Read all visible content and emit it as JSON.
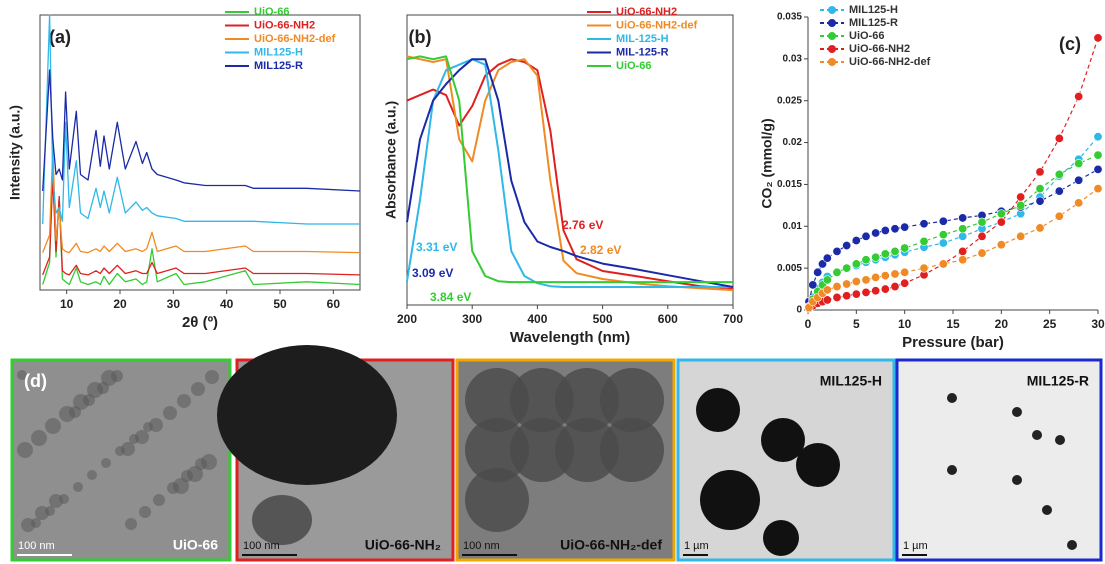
{
  "chart_data": [
    {
      "type": "line",
      "panel_label": "(a)",
      "xlabel": "2θ (º)",
      "ylabel": "Intensity (a.u.)",
      "x": [
        5.5,
        6.8,
        7.4,
        8,
        8.6,
        9.2,
        9.8,
        10.5,
        11.8,
        12.6,
        14,
        15.5,
        16.3,
        17,
        18,
        19.5,
        21,
        23,
        24.2,
        25,
        26,
        27,
        30.5,
        32,
        36,
        43.5,
        45,
        55,
        65
      ],
      "xlim": [
        5,
        65
      ],
      "xticks": [
        10,
        20,
        30,
        40,
        50,
        60
      ],
      "ylim": [
        0,
        100
      ],
      "series": [
        {
          "name": "UiO-66",
          "color": "#33cc33",
          "values": [
            2,
            10,
            45,
            12,
            34,
            4,
            3,
            2,
            8,
            3,
            2,
            3,
            2,
            5,
            2,
            6,
            3,
            4,
            2,
            3,
            15,
            3,
            6,
            2,
            3,
            7,
            2,
            3,
            2
          ]
        },
        {
          "name": "UiO-66-NH2",
          "color": "#e02020",
          "values": [
            5.5,
            12,
            41,
            14,
            34,
            7,
            6,
            5.5,
            9,
            6,
            5.5,
            7,
            6,
            8,
            6,
            9,
            6,
            7,
            6,
            6,
            10,
            6,
            8,
            6,
            6,
            8,
            6,
            6,
            5.5
          ]
        },
        {
          "name": "UiO-66-NH2-def",
          "color": "#f08a24",
          "values": [
            13.6,
            20,
            52,
            18,
            30,
            15,
            14,
            13.6,
            17,
            14,
            13.6,
            15,
            14,
            16,
            14,
            17,
            14,
            15,
            14,
            15,
            21,
            14,
            16,
            14,
            14,
            16,
            14,
            14,
            13.6
          ]
        },
        {
          "name": "MIL125-H",
          "color": "#2fb8e8",
          "values": [
            24,
            100,
            40,
            28,
            30,
            25,
            61,
            30,
            47,
            28,
            26,
            37,
            30,
            36,
            28,
            41,
            28,
            32,
            29,
            30,
            28,
            27,
            26,
            25,
            25,
            25,
            25,
            24,
            24
          ]
        },
        {
          "name": "MIL125-R",
          "color": "#1a2aa8",
          "values": [
            36,
            80,
            55,
            42,
            44,
            40,
            72,
            44,
            65,
            42,
            40,
            58,
            45,
            56,
            44,
            61,
            44,
            54,
            46,
            50,
            44,
            42,
            40,
            39,
            38,
            38,
            37,
            37,
            36
          ]
        }
      ]
    },
    {
      "type": "line",
      "panel_label": "(b)",
      "xlabel": "Wavelength (nm)",
      "ylabel": "Absorbance (a.u.)",
      "x": [
        200,
        220,
        240,
        260,
        280,
        300,
        320,
        340,
        360,
        380,
        400,
        420,
        440,
        460,
        500,
        550,
        600,
        650,
        700
      ],
      "xlim": [
        200,
        700
      ],
      "xticks": [
        200,
        300,
        400,
        500,
        600,
        700
      ],
      "ylim": [
        -5,
        100
      ],
      "series": [
        {
          "name": "UiO-66-NH2",
          "color": "#e02020",
          "values": [
            69,
            71,
            73,
            71,
            60,
            67,
            78,
            82,
            84,
            83,
            80,
            58,
            22,
            11.6,
            7.3,
            5.5,
            3.6,
            1.8,
            1.1
          ]
        },
        {
          "name": "UiO-66-NH2-def",
          "color": "#f08a24",
          "values": [
            85,
            84,
            83,
            84,
            55,
            47,
            69,
            80,
            83,
            84,
            78,
            40,
            11,
            6.5,
            4.4,
            2.9,
            1.8,
            1.1,
            0.4
          ]
        },
        {
          "name": "MIL-125-H",
          "color": "#2fb8e8",
          "values": [
            3.6,
            33,
            69,
            80,
            82,
            84,
            82,
            51,
            14.5,
            5.5,
            2.9,
            1.8,
            1.5,
            1.5,
            1.5,
            1.5,
            1.5,
            1.5,
            1.5
          ]
        },
        {
          "name": "MIL-125-R",
          "color": "#1a2aa8",
          "values": [
            25,
            55,
            69,
            75,
            80,
            84,
            84,
            69,
            40,
            25,
            18,
            16,
            14.5,
            12.7,
            10,
            8,
            5.8,
            3.6,
            1.5
          ]
        },
        {
          "name": "UiO-66",
          "color": "#33cc33",
          "values": [
            84,
            85,
            84,
            85,
            69,
            14.5,
            5.5,
            3.6,
            3.3,
            3.3,
            3.3,
            3.3,
            3.3,
            3.3,
            3.3,
            3.3,
            3.3,
            3.3,
            3.3
          ]
        }
      ],
      "annotations": [
        {
          "text": "2.76 eV",
          "color": "#e02020"
        },
        {
          "text": "2.82 eV",
          "color": "#f08a24"
        },
        {
          "text": "3.31 eV",
          "color": "#2fb8e8"
        },
        {
          "text": "3.09 eV",
          "color": "#1a2aa8"
        },
        {
          "text": "3.84 eV",
          "color": "#33cc33"
        }
      ]
    },
    {
      "type": "line",
      "panel_label": "(c)",
      "xlabel": "Pressure (bar)",
      "ylabel": "CO₂ (mmol/g)",
      "x": [
        0.1,
        0.5,
        1,
        1.5,
        2,
        3,
        4,
        5,
        6,
        7,
        8,
        9,
        10,
        12,
        14,
        16,
        18,
        20,
        22,
        24,
        26,
        28,
        30
      ],
      "xlim": [
        0,
        30
      ],
      "xticks": [
        0,
        5,
        10,
        15,
        20,
        25,
        30
      ],
      "ylim": [
        0,
        0.035
      ],
      "yticks": [
        0,
        0.005,
        0.01,
        0.015,
        0.02,
        0.025,
        0.03,
        0.035
      ],
      "series": [
        {
          "name": "MIL125-H",
          "color": "#2fb8e8",
          "values": [
            0.0005,
            0.0015,
            0.0025,
            0.0033,
            0.004,
            0.0045,
            0.005,
            0.0053,
            0.0057,
            0.006,
            0.0063,
            0.0066,
            0.0069,
            0.0075,
            0.008,
            0.0088,
            0.0097,
            0.0105,
            0.0115,
            0.0135,
            0.016,
            0.018,
            0.0207
          ]
        },
        {
          "name": "MIL125-R",
          "color": "#1a2aa8",
          "values": [
            0.001,
            0.003,
            0.0045,
            0.0055,
            0.0062,
            0.007,
            0.0077,
            0.0083,
            0.0088,
            0.0092,
            0.0095,
            0.0097,
            0.0099,
            0.0103,
            0.0106,
            0.011,
            0.0113,
            0.0118,
            0.0123,
            0.013,
            0.0142,
            0.0155,
            0.0168
          ]
        },
        {
          "name": "UiO-66",
          "color": "#33cc33",
          "values": [
            0.0004,
            0.0013,
            0.0022,
            0.003,
            0.0036,
            0.0045,
            0.005,
            0.0055,
            0.006,
            0.0063,
            0.0067,
            0.007,
            0.0074,
            0.0082,
            0.009,
            0.0097,
            0.0105,
            0.0115,
            0.0125,
            0.0145,
            0.0162,
            0.0175,
            0.0185
          ]
        },
        {
          "name": "UiO-66-NH2",
          "color": "#e02020",
          "values": [
            0.0002,
            0.0005,
            0.0008,
            0.001,
            0.0012,
            0.0015,
            0.0017,
            0.0019,
            0.0021,
            0.0023,
            0.0025,
            0.0028,
            0.0032,
            0.0042,
            0.0055,
            0.007,
            0.0088,
            0.0105,
            0.0135,
            0.0165,
            0.0205,
            0.0255,
            0.0325
          ]
        },
        {
          "name": "UiO-66-NH2-def",
          "color": "#f08a24",
          "values": [
            0.0003,
            0.001,
            0.0015,
            0.002,
            0.0024,
            0.0028,
            0.0031,
            0.0034,
            0.0036,
            0.0039,
            0.0041,
            0.0043,
            0.0045,
            0.005,
            0.0055,
            0.006,
            0.0068,
            0.0078,
            0.0088,
            0.0098,
            0.0112,
            0.0128,
            0.0145
          ]
        }
      ]
    }
  ],
  "images": {
    "panel_label": "(d)",
    "panels": [
      {
        "label": "UiO-66",
        "scale": "100 nm",
        "border": "#33cc33"
      },
      {
        "label": "UiO-66-NH₂",
        "scale": "100 nm",
        "border": "#e02020"
      },
      {
        "label": "UiO-66-NH₂-def",
        "scale": "100 nm",
        "border": "#f0a800"
      },
      {
        "label": "MIL125-H",
        "scale": "1 µm",
        "border": "#2fb8e8"
      },
      {
        "label": "MIL125-R",
        "scale": "1 µm",
        "border": "#1a2ad0"
      }
    ]
  }
}
